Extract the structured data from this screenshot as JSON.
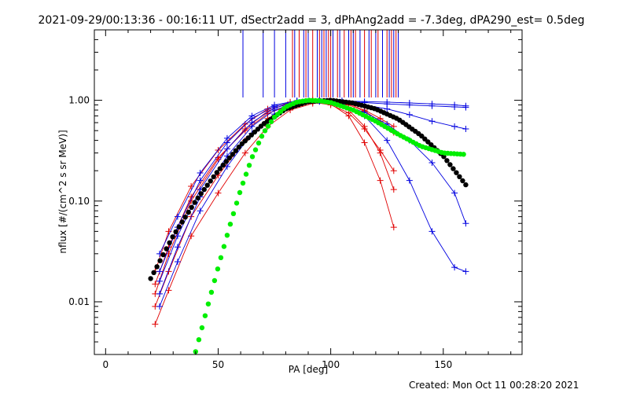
{
  "header": {
    "title": "2021-09-29/00:13:36 - 00:16:11 UT, dSectr2add = 3, dPhAng2add = -7.3deg, dPA290_est=  0.5deg"
  },
  "footer": {
    "created": "Created: Mon Oct 11 00:28:20 2021"
  },
  "colors": {
    "red": "#e00000",
    "blue": "#0000e0",
    "black": "#000000",
    "green": "#00ee00"
  },
  "chart_data": {
    "type": "line",
    "xlabel": "PA [deg]",
    "ylabel": "nflux [#/(cm^2 s sr MeV)]",
    "xlim": [
      -5,
      185
    ],
    "ylim": [
      0.003,
      5
    ],
    "yscale": "log",
    "grid": false,
    "xticks": [
      0,
      50,
      100,
      150
    ],
    "xtick_labels": [
      "0",
      "50",
      "100",
      "150"
    ],
    "yticks": [
      0.01,
      0.1,
      1.0
    ],
    "ytick_labels": [
      "0.01",
      "0.10",
      "1.00"
    ],
    "reference_curves": [
      {
        "color": "black",
        "x": [
          20,
          30,
          40,
          50,
          60,
          70,
          80,
          90,
          100,
          110,
          120,
          130,
          140,
          150,
          160
        ],
        "y": [
          0.017,
          0.045,
          0.1,
          0.2,
          0.36,
          0.58,
          0.82,
          0.97,
          1.0,
          0.94,
          0.82,
          0.65,
          0.45,
          0.28,
          0.145
        ]
      },
      {
        "color": "green",
        "x": [
          40,
          45,
          50,
          55,
          60,
          65,
          70,
          75,
          80,
          85,
          90,
          95,
          100,
          110,
          120,
          130,
          140,
          150,
          160
        ],
        "y": [
          0.0032,
          0.0085,
          0.022,
          0.055,
          0.13,
          0.27,
          0.47,
          0.68,
          0.86,
          0.96,
          1.0,
          0.99,
          0.95,
          0.8,
          0.62,
          0.46,
          0.35,
          0.3,
          0.29
        ]
      }
    ],
    "sector_marks": {
      "x": [
        61,
        70,
        75,
        80,
        83,
        84,
        86,
        88,
        89,
        90,
        92,
        94,
        95,
        96,
        97,
        98,
        99,
        100,
        101,
        103,
        104,
        106,
        108,
        109,
        110,
        111,
        113,
        115,
        117,
        118,
        120,
        121,
        123,
        125,
        126,
        127,
        128,
        129,
        130
      ],
      "colors": [
        "blue",
        "blue",
        "blue",
        "blue",
        "red",
        "blue",
        "red",
        "blue",
        "red",
        "blue",
        "red",
        "blue",
        "red",
        "blue",
        "red",
        "blue",
        "red",
        "red",
        "blue",
        "red",
        "blue",
        "red",
        "blue",
        "red",
        "blue",
        "red",
        "blue",
        "red",
        "blue",
        "red",
        "blue",
        "red",
        "blue",
        "red",
        "blue",
        "red",
        "blue",
        "red",
        "blue"
      ]
    },
    "series_groups": [
      {
        "color": "red",
        "marker": "plus",
        "x": [
          22,
          28,
          38,
          50,
          62,
          72,
          82,
          92,
          100,
          108,
          115,
          122,
          128
        ],
        "y_profiles": [
          [
            0.012,
            0.03,
            0.1,
            0.26,
            0.52,
            0.78,
            0.95,
            1.0,
            0.92,
            0.7,
            0.38,
            0.16,
            0.055
          ],
          [
            0.009,
            0.02,
            0.07,
            0.18,
            0.4,
            0.66,
            0.86,
            0.96,
            0.94,
            0.8,
            0.55,
            0.3,
            0.13
          ],
          [
            0.006,
            0.013,
            0.045,
            0.12,
            0.3,
            0.55,
            0.8,
            0.93,
            0.96,
            0.9,
            0.78,
            0.62,
            0.48
          ],
          [
            0.02,
            0.05,
            0.14,
            0.32,
            0.58,
            0.82,
            0.96,
            1.0,
            0.98,
            0.92,
            0.8,
            0.66,
            0.55
          ],
          [
            0.015,
            0.035,
            0.11,
            0.27,
            0.5,
            0.74,
            0.9,
            0.96,
            0.9,
            0.75,
            0.52,
            0.32,
            0.2
          ]
        ]
      },
      {
        "color": "blue",
        "marker": "plus",
        "x": [
          24,
          32,
          42,
          54,
          65,
          75,
          85,
          95,
          105,
          115,
          125,
          135,
          145,
          155,
          160
        ],
        "y_profiles": [
          [
            0.02,
            0.055,
            0.16,
            0.38,
            0.66,
            0.87,
            0.98,
            1.0,
            0.98,
            0.95,
            0.92,
            0.9,
            0.88,
            0.86,
            0.85
          ],
          [
            0.012,
            0.035,
            0.11,
            0.28,
            0.55,
            0.8,
            0.95,
            0.99,
            0.96,
            0.9,
            0.82,
            0.72,
            0.62,
            0.55,
            0.52
          ],
          [
            0.009,
            0.025,
            0.08,
            0.22,
            0.47,
            0.73,
            0.92,
            0.97,
            0.9,
            0.76,
            0.58,
            0.4,
            0.24,
            0.12,
            0.06
          ],
          [
            0.03,
            0.07,
            0.19,
            0.42,
            0.7,
            0.9,
            0.99,
            1.0,
            0.99,
            0.97,
            0.96,
            0.94,
            0.92,
            0.9,
            0.88
          ],
          [
            0.016,
            0.045,
            0.13,
            0.33,
            0.6,
            0.84,
            0.96,
            0.98,
            0.92,
            0.7,
            0.4,
            0.16,
            0.05,
            0.022,
            0.02
          ]
        ]
      }
    ]
  }
}
